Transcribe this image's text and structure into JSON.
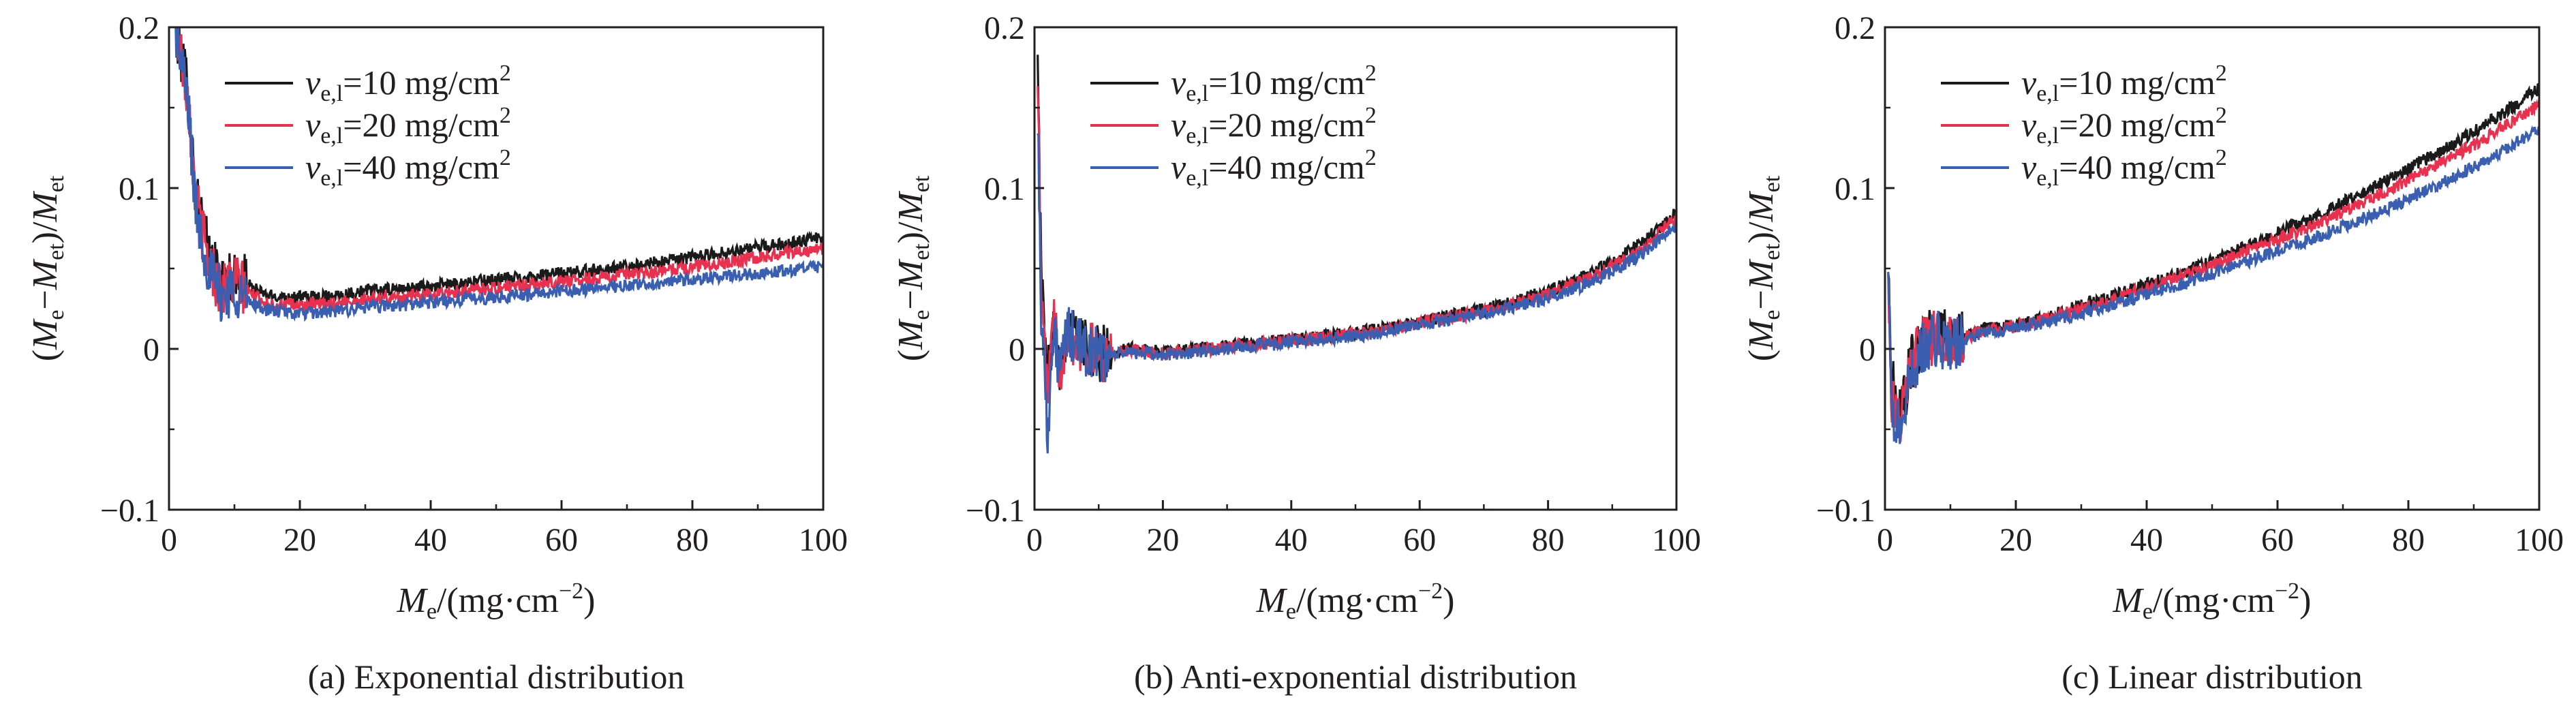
{
  "legend_labels": [
    {
      "var": "v",
      "sub": "e,l",
      "text": "=10 mg/cm",
      "sup": "2"
    },
    {
      "var": "v",
      "sub": "e,l",
      "text": "=20 mg/cm",
      "sup": "2"
    },
    {
      "var": "v",
      "sub": "e,l",
      "text": "=40 mg/cm",
      "sup": "2"
    }
  ],
  "series_colors": [
    "#1a1a1a",
    "#e8314f",
    "#3a5fb0"
  ],
  "ylabel_parts": {
    "open": "(",
    "a": "M",
    "a_sub": "e",
    "minus": "−",
    "b": "M",
    "b_sub": "et",
    "close": ")/",
    "c": "M",
    "c_sub": "et"
  },
  "xlabel_parts": {
    "a": "M",
    "a_sub": "e",
    "rest": "/(mg·cm",
    "sup": "−2",
    "close": ")"
  },
  "chart_data": [
    {
      "type": "line",
      "caption": "(a) Exponential distribution",
      "xlim": [
        0,
        100
      ],
      "ylim": [
        -0.1,
        0.2
      ],
      "xticks": [
        "0",
        "20",
        "40",
        "60",
        "80",
        "100"
      ],
      "yticks": [
        "−0.1",
        "0",
        "0.1",
        "0.2"
      ],
      "x": [
        1,
        2,
        3,
        4,
        5,
        6,
        8,
        10,
        12,
        15,
        20,
        25,
        30,
        35,
        40,
        45,
        50,
        55,
        60,
        65,
        70,
        75,
        80,
        85,
        90,
        95,
        100
      ],
      "series": [
        {
          "name": "ve,l=10 mg/cm2",
          "values": [
            0.2,
            0.18,
            0.16,
            0.1,
            0.08,
            0.06,
            0.04,
            0.045,
            0.04,
            0.033,
            0.032,
            0.033,
            0.036,
            0.037,
            0.039,
            0.041,
            0.043,
            0.045,
            0.047,
            0.049,
            0.051,
            0.054,
            0.057,
            0.06,
            0.063,
            0.066,
            0.069
          ]
        },
        {
          "name": "ve,l=20 mg/cm2",
          "values": [
            0.2,
            0.18,
            0.155,
            0.095,
            0.075,
            0.055,
            0.036,
            0.042,
            0.036,
            0.028,
            0.027,
            0.028,
            0.031,
            0.032,
            0.034,
            0.036,
            0.038,
            0.04,
            0.042,
            0.044,
            0.046,
            0.048,
            0.051,
            0.054,
            0.057,
            0.06,
            0.062
          ]
        },
        {
          "name": "ve,l=40 mg/cm2",
          "values": [
            0.2,
            0.175,
            0.15,
            0.09,
            0.07,
            0.05,
            0.033,
            0.038,
            0.03,
            0.024,
            0.022,
            0.023,
            0.026,
            0.027,
            0.029,
            0.031,
            0.032,
            0.034,
            0.036,
            0.038,
            0.039,
            0.041,
            0.043,
            0.045,
            0.047,
            0.049,
            0.051
          ]
        }
      ]
    },
    {
      "type": "line",
      "caption": "(b) Anti-exponential distribution",
      "xlim": [
        0,
        100
      ],
      "ylim": [
        -0.1,
        0.2
      ],
      "xticks": [
        "0",
        "20",
        "40",
        "60",
        "80",
        "100"
      ],
      "yticks": [
        "−0.1",
        "0",
        "0.1",
        "0.2"
      ],
      "x": [
        0.5,
        1,
        2,
        3,
        4,
        5,
        7,
        10,
        15,
        20,
        25,
        30,
        35,
        40,
        45,
        50,
        55,
        60,
        65,
        70,
        75,
        80,
        85,
        90,
        95,
        100
      ],
      "series": [
        {
          "name": "ve,l=10 mg/cm2",
          "values": [
            0.2,
            0.05,
            -0.02,
            0.02,
            -0.01,
            0.015,
            0.005,
            -0.003,
            0.0,
            -0.002,
            0.0,
            0.002,
            0.004,
            0.006,
            0.008,
            0.01,
            0.013,
            0.017,
            0.021,
            0.025,
            0.03,
            0.036,
            0.044,
            0.054,
            0.067,
            0.085
          ]
        },
        {
          "name": "ve,l=20 mg/cm2",
          "values": [
            0.18,
            0.04,
            -0.03,
            0.015,
            -0.012,
            0.012,
            0.003,
            -0.004,
            -0.001,
            -0.003,
            -0.001,
            0.001,
            0.003,
            0.005,
            0.007,
            0.009,
            0.012,
            0.016,
            0.02,
            0.023,
            0.028,
            0.034,
            0.042,
            0.051,
            0.064,
            0.082
          ]
        },
        {
          "name": "ve,l=40 mg/cm2",
          "values": [
            0.15,
            0.03,
            -0.05,
            0.01,
            -0.015,
            0.01,
            0.002,
            -0.005,
            -0.002,
            -0.004,
            -0.002,
            0.0,
            0.002,
            0.004,
            0.006,
            0.008,
            0.011,
            0.015,
            0.018,
            0.022,
            0.026,
            0.032,
            0.039,
            0.048,
            0.06,
            0.078
          ]
        }
      ]
    },
    {
      "type": "line",
      "caption": "(c) Linear distribution",
      "xlim": [
        0,
        100
      ],
      "ylim": [
        -0.1,
        0.2
      ],
      "xticks": [
        "0",
        "20",
        "40",
        "60",
        "80",
        "100"
      ],
      "yticks": [
        "−0.1",
        "0",
        "0.1",
        "0.2"
      ],
      "x": [
        0.5,
        1,
        2,
        3,
        4,
        5,
        6,
        8,
        10,
        15,
        20,
        25,
        30,
        35,
        40,
        45,
        50,
        55,
        60,
        65,
        70,
        75,
        80,
        85,
        90,
        95,
        100
      ],
      "series": [
        {
          "name": "ve,l=10 mg/cm2",
          "values": [
            0.05,
            -0.02,
            -0.04,
            -0.03,
            -0.01,
            0.0,
            0.005,
            0.01,
            0.005,
            0.012,
            0.015,
            0.02,
            0.027,
            0.033,
            0.04,
            0.047,
            0.055,
            0.063,
            0.072,
            0.081,
            0.091,
            0.101,
            0.112,
            0.123,
            0.135,
            0.148,
            0.162
          ]
        },
        {
          "name": "ve,l=20 mg/cm2",
          "values": [
            0.05,
            -0.03,
            -0.045,
            -0.035,
            -0.012,
            -0.002,
            0.003,
            0.008,
            0.004,
            0.011,
            0.014,
            0.019,
            0.025,
            0.031,
            0.038,
            0.045,
            0.052,
            0.06,
            0.068,
            0.076,
            0.085,
            0.095,
            0.105,
            0.116,
            0.127,
            0.139,
            0.152
          ]
        },
        {
          "name": "ve,l=40 mg/cm2",
          "values": [
            0.05,
            -0.04,
            -0.05,
            -0.04,
            -0.015,
            -0.005,
            0.001,
            0.006,
            0.003,
            0.01,
            0.013,
            0.017,
            0.022,
            0.028,
            0.034,
            0.04,
            0.047,
            0.054,
            0.061,
            0.068,
            0.076,
            0.084,
            0.093,
            0.103,
            0.113,
            0.124,
            0.136
          ]
        }
      ]
    }
  ]
}
